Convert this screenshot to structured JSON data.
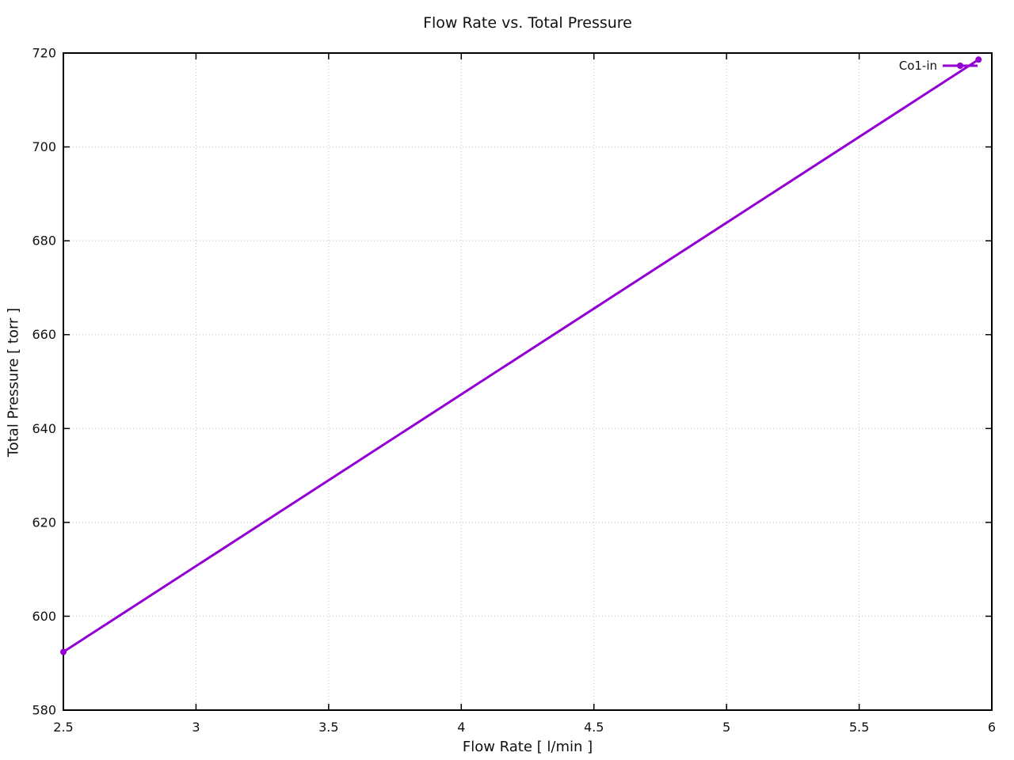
{
  "page": {
    "background_color": "#ffffff",
    "text_color": "#111111"
  },
  "chart_data": {
    "type": "line",
    "title": "Flow Rate vs. Total Pressure",
    "xlabel": "Flow Rate [ l/min ]",
    "ylabel": "Total Pressure [ torr ]",
    "xlim": [
      2.5,
      6
    ],
    "ylim": [
      580,
      720
    ],
    "xticks": {
      "values": [
        2.5,
        3,
        3.5,
        4,
        4.5,
        5,
        5.5,
        6
      ],
      "labels": [
        "2.5",
        "3",
        "3.5",
        "4",
        "4.5",
        "5",
        "5.5",
        "6"
      ]
    },
    "yticks": {
      "values": [
        580,
        600,
        620,
        640,
        660,
        680,
        700,
        720
      ],
      "labels": [
        "580",
        "600",
        "620",
        "640",
        "660",
        "680",
        "700",
        "720"
      ]
    },
    "grid": true,
    "grid_style": "dotted",
    "grid_color": "#c0c0c0",
    "axis_color": "#000000",
    "legend": {
      "position": "top-right-inside"
    },
    "series": [
      {
        "name": "Co1-in",
        "color": "#9400d3",
        "marker": "filled-circle",
        "marker_radius": 4,
        "line_width": 3,
        "points": [
          [
            2.5,
            592.4
          ],
          [
            5.95,
            718.6
          ]
        ]
      }
    ]
  }
}
